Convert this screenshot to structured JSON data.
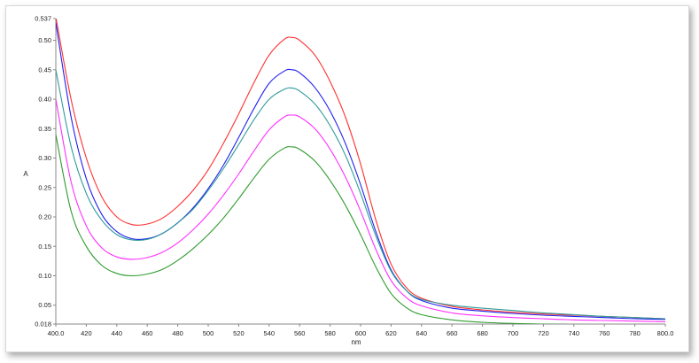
{
  "chart_data": {
    "type": "line",
    "title": "",
    "xlabel": "nm",
    "ylabel": "A",
    "xlim": [
      400,
      800
    ],
    "ylim": [
      0.018,
      0.537
    ],
    "x_ticks": [
      "400.0",
      "420",
      "440",
      "460",
      "480",
      "500",
      "520",
      "540",
      "560",
      "580",
      "600",
      "620",
      "640",
      "660",
      "680",
      "700",
      "720",
      "740",
      "760",
      "780",
      "800.0"
    ],
    "y_ticks": [
      "0.537",
      "0.50",
      "0.45",
      "0.40",
      "0.35",
      "0.30",
      "0.25",
      "0.20",
      "0.15",
      "0.10",
      "0.05",
      "0.018"
    ],
    "grid": false,
    "legend": "none",
    "series": [
      {
        "color": "#ff3030",
        "x": [
          400,
          410,
          420,
          430,
          440,
          450,
          460,
          470,
          480,
          490,
          500,
          510,
          520,
          530,
          540,
          550,
          555,
          560,
          570,
          580,
          590,
          600,
          610,
          620,
          630,
          640,
          660,
          680,
          700,
          720,
          740,
          760,
          780,
          800
        ],
        "y": [
          0.54,
          0.4,
          0.3,
          0.235,
          0.2,
          0.187,
          0.188,
          0.198,
          0.218,
          0.245,
          0.28,
          0.325,
          0.375,
          0.428,
          0.475,
          0.502,
          0.505,
          0.5,
          0.475,
          0.43,
          0.37,
          0.29,
          0.195,
          0.12,
          0.08,
          0.062,
          0.048,
          0.042,
          0.038,
          0.035,
          0.033,
          0.031,
          0.029,
          0.027
        ]
      },
      {
        "color": "#2020ee",
        "x": [
          400,
          410,
          420,
          430,
          440,
          450,
          460,
          470,
          480,
          490,
          500,
          510,
          520,
          530,
          540,
          550,
          555,
          560,
          570,
          580,
          590,
          600,
          610,
          620,
          630,
          640,
          660,
          680,
          700,
          720,
          740,
          760,
          780,
          800
        ],
        "y": [
          0.53,
          0.37,
          0.265,
          0.205,
          0.175,
          0.163,
          0.163,
          0.172,
          0.19,
          0.215,
          0.248,
          0.288,
          0.335,
          0.384,
          0.427,
          0.448,
          0.45,
          0.445,
          0.42,
          0.38,
          0.325,
          0.255,
          0.175,
          0.11,
          0.075,
          0.058,
          0.045,
          0.04,
          0.036,
          0.033,
          0.031,
          0.029,
          0.027,
          0.026
        ]
      },
      {
        "color": "#2f9a9a",
        "x": [
          400,
          410,
          420,
          430,
          440,
          450,
          460,
          470,
          480,
          490,
          500,
          510,
          520,
          530,
          540,
          550,
          555,
          560,
          570,
          580,
          590,
          600,
          610,
          620,
          630,
          640,
          660,
          680,
          700,
          720,
          740,
          760,
          780,
          800
        ],
        "y": [
          0.45,
          0.32,
          0.24,
          0.195,
          0.17,
          0.161,
          0.162,
          0.172,
          0.19,
          0.213,
          0.245,
          0.282,
          0.323,
          0.365,
          0.4,
          0.417,
          0.419,
          0.414,
          0.392,
          0.355,
          0.305,
          0.24,
          0.168,
          0.108,
          0.075,
          0.06,
          0.05,
          0.045,
          0.041,
          0.037,
          0.034,
          0.031,
          0.029,
          0.027
        ]
      },
      {
        "color": "#ff30ff",
        "x": [
          400,
          410,
          420,
          430,
          440,
          450,
          460,
          470,
          480,
          490,
          500,
          510,
          520,
          530,
          540,
          550,
          555,
          560,
          570,
          580,
          590,
          600,
          610,
          620,
          630,
          640,
          660,
          680,
          700,
          720,
          740,
          760,
          780,
          800
        ],
        "y": [
          0.4,
          0.26,
          0.185,
          0.148,
          0.132,
          0.128,
          0.131,
          0.14,
          0.156,
          0.178,
          0.205,
          0.237,
          0.273,
          0.312,
          0.348,
          0.37,
          0.373,
          0.37,
          0.35,
          0.315,
          0.268,
          0.21,
          0.145,
          0.092,
          0.063,
          0.049,
          0.037,
          0.032,
          0.029,
          0.027,
          0.025,
          0.024,
          0.023,
          0.022
        ]
      },
      {
        "color": "#2e9b2e",
        "x": [
          400,
          410,
          420,
          430,
          440,
          450,
          460,
          470,
          480,
          490,
          500,
          510,
          520,
          530,
          540,
          550,
          555,
          560,
          570,
          580,
          590,
          600,
          610,
          620,
          630,
          640,
          660,
          680,
          700,
          720,
          740,
          760,
          780,
          800
        ],
        "y": [
          0.34,
          0.21,
          0.15,
          0.118,
          0.104,
          0.1,
          0.103,
          0.111,
          0.126,
          0.146,
          0.17,
          0.198,
          0.231,
          0.266,
          0.298,
          0.317,
          0.319,
          0.315,
          0.295,
          0.262,
          0.22,
          0.17,
          0.115,
          0.07,
          0.046,
          0.034,
          0.025,
          0.021,
          0.019,
          0.018,
          0.017,
          0.016,
          0.016,
          0.015
        ]
      }
    ]
  }
}
